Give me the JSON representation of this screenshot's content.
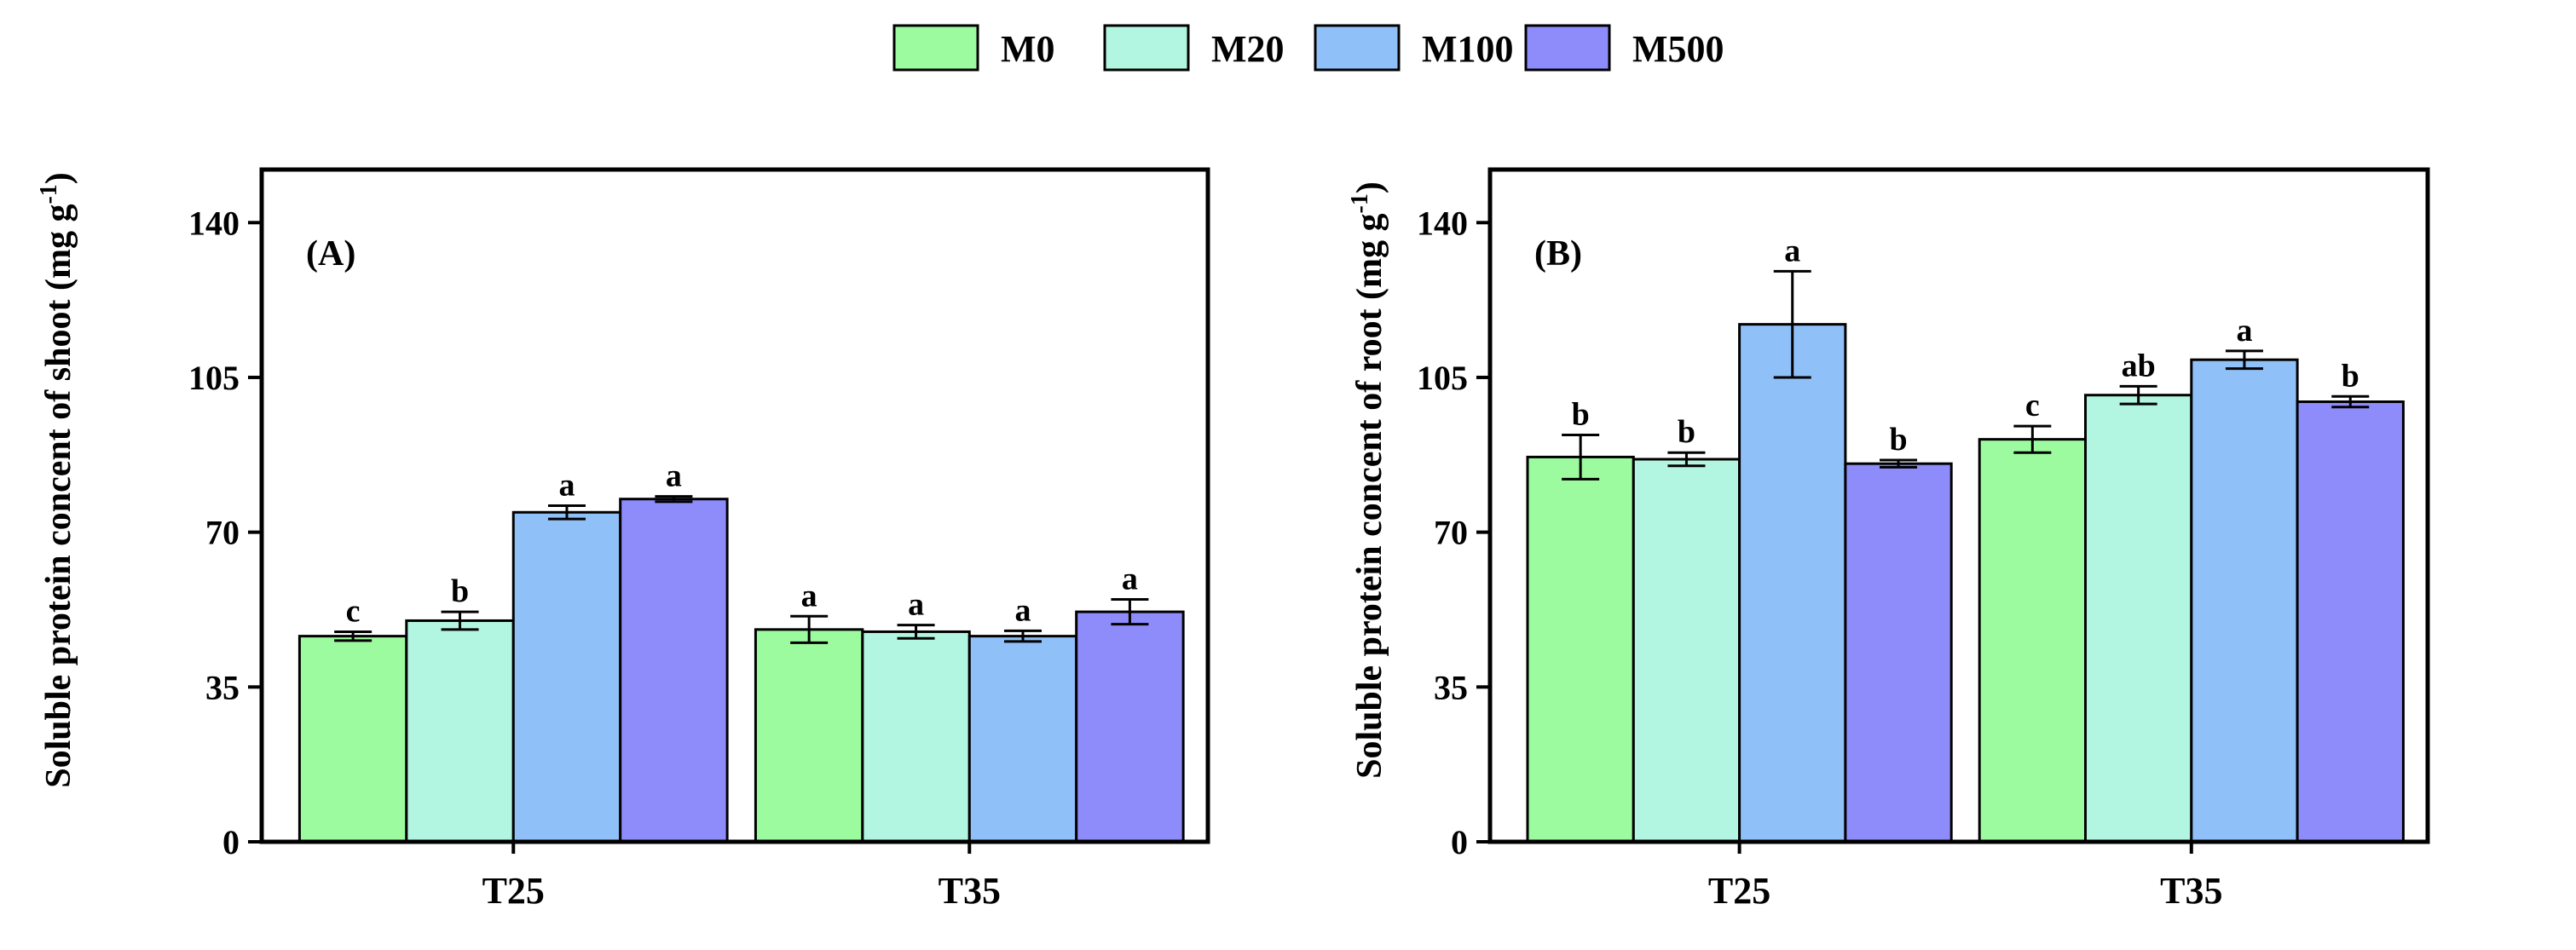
{
  "legend": {
    "items": [
      {
        "name": "M0",
        "color": "#9cfb9e"
      },
      {
        "name": "M20",
        "color": "#b2f5e1"
      },
      {
        "name": "M100",
        "color": "#90c0f8"
      },
      {
        "name": "M500",
        "color": "#8e8cfb"
      }
    ]
  },
  "chart_data": [
    {
      "type": "bar",
      "panel_label": "(A)",
      "ylabel": "Soluble protein concent of shoot (mg g",
      "ylabel_sup": "-1",
      "ylabel_close": ")",
      "ylim": [
        0,
        152
      ],
      "yticks": [
        0,
        35,
        70,
        105,
        140
      ],
      "categories": [
        "T25",
        "T35"
      ],
      "series": [
        {
          "name": "M0",
          "values": [
            46.5,
            48
          ],
          "errors": [
            1,
            3
          ],
          "labels": [
            "c",
            "a"
          ]
        },
        {
          "name": "M20",
          "values": [
            50,
            47.5
          ],
          "errors": [
            2,
            1.5
          ],
          "labels": [
            "b",
            "a"
          ]
        },
        {
          "name": "M100",
          "values": [
            74.5,
            46.5
          ],
          "errors": [
            1.5,
            1.2
          ],
          "labels": [
            "a",
            "a"
          ]
        },
        {
          "name": "M500",
          "values": [
            77.5,
            52
          ],
          "errors": [
            0.6,
            2.8
          ],
          "labels": [
            "a",
            "a"
          ]
        }
      ]
    },
    {
      "type": "bar",
      "panel_label": "(B)",
      "ylabel": "Soluble protein concent of root (mg g",
      "ylabel_sup": "-1",
      "ylabel_close": ")",
      "ylim": [
        0,
        152
      ],
      "yticks": [
        0,
        35,
        70,
        105,
        140
      ],
      "categories": [
        "T25",
        "T35"
      ],
      "series": [
        {
          "name": "M0",
          "values": [
            87,
            91
          ],
          "errors": [
            5,
            3
          ],
          "labels": [
            "b",
            "c"
          ]
        },
        {
          "name": "M20",
          "values": [
            86.5,
            101
          ],
          "errors": [
            1.5,
            2
          ],
          "labels": [
            "b",
            "ab"
          ]
        },
        {
          "name": "M100",
          "values": [
            117,
            109
          ],
          "errors": [
            12,
            2
          ],
          "labels": [
            "a",
            "a"
          ]
        },
        {
          "name": "M500",
          "values": [
            85.5,
            99.5
          ],
          "errors": [
            0.8,
            1.2
          ],
          "labels": [
            "b",
            "b"
          ]
        }
      ]
    }
  ]
}
